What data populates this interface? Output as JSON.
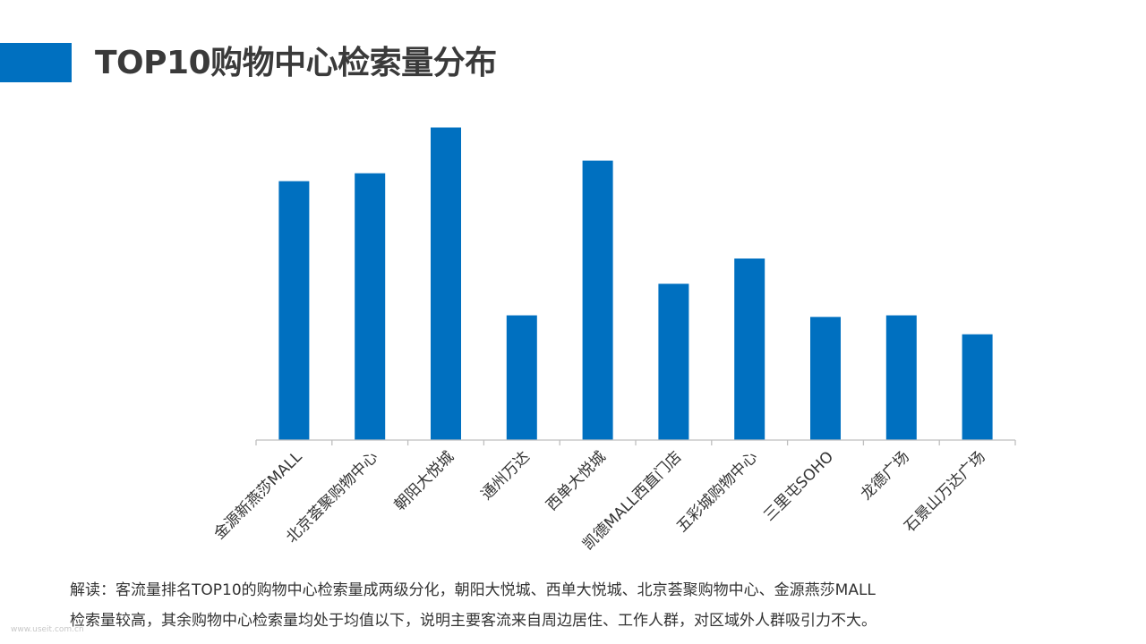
{
  "slide": {
    "title": "TOP10购物中心检索量分布",
    "accent_color": "#0070C0",
    "notes": [
      "解读：客流量排名TOP10的购物中心检索量成两级分化，朝阳大悦城、西单大悦城、北京荟聚购物中心、金源燕莎MALL",
      "检索量较高，其余购物中心检索量均处于均值以下，说明主要客流来自周边居住、工作人群，对区域外人群吸引力不大。"
    ],
    "watermark": "www.useit.com.cn"
  },
  "chart_data": {
    "type": "bar",
    "categories": [
      "金源新燕莎MALL",
      "北京荟聚购物中心",
      "朝阳大悦城",
      "通州万达",
      "西单大悦城",
      "凯德MALL西直门店",
      "五彩城购物中心",
      "三里屯SOHO",
      "龙德广场",
      "石景山万达广场"
    ],
    "values": [
      82,
      84.5,
      99,
      39.5,
      88.5,
      49.5,
      57.5,
      39,
      39.5,
      33.5
    ],
    "ylim": [
      0,
      100
    ],
    "bar_color": "#0070C0",
    "axis_color": "#BFBFBF",
    "grid": false,
    "legend": "none",
    "value_axis_labels": false
  }
}
